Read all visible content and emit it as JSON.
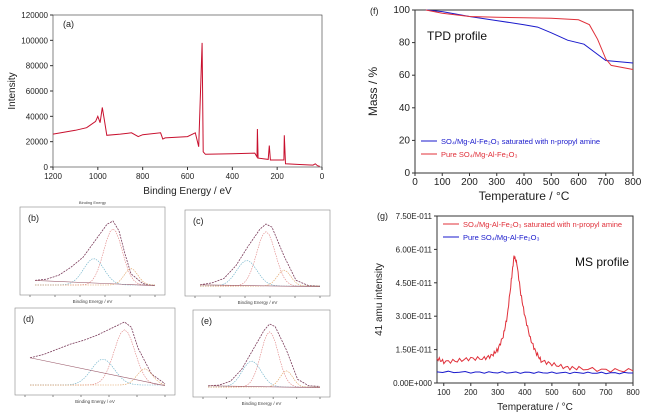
{
  "chart_data": [
    {
      "panel": "(a)",
      "type": "line",
      "xlabel": "Binding Energy / eV",
      "ylabel": "Intensity",
      "xlim": [
        1200,
        0
      ],
      "ylim": [
        0,
        120000
      ],
      "xticks": [
        "1200",
        "1000",
        "800",
        "600",
        "400",
        "200",
        "0"
      ],
      "yticks": [
        "0",
        "20000",
        "40000",
        "60000",
        "80000",
        "100000",
        "120000"
      ],
      "grid": false,
      "colors": [
        "#c8102e"
      ],
      "series": [
        {
          "x": [
            1200,
            1100,
            1050,
            1010,
            1000,
            990,
            980,
            970,
            960,
            900,
            850,
            820,
            800,
            720,
            710,
            700,
            600,
            565,
            550,
            535,
            530,
            520,
            400,
            300,
            290,
            288,
            285,
            240,
            235,
            230,
            170,
            168,
            163,
            100,
            40,
            30,
            20,
            10
          ],
          "y": [
            26000,
            29000,
            31000,
            36000,
            40000,
            35000,
            47000,
            36000,
            25000,
            26000,
            27000,
            24000,
            25500,
            27000,
            22000,
            23000,
            24000,
            27000,
            16000,
            98000,
            12000,
            10000,
            10500,
            11000,
            8000,
            30000,
            7000,
            6000,
            17000,
            5500,
            5500,
            25000,
            2500,
            2000,
            1500,
            2500,
            1000,
            500
          ]
        }
      ]
    },
    {
      "panel": "(f)",
      "type": "line",
      "xlabel": "Temperature / °C",
      "ylabel": "Mass / %",
      "annotation": "TPD profile",
      "xlim": [
        0,
        800
      ],
      "ylim": [
        0,
        100
      ],
      "xticks": [
        "0",
        "100",
        "200",
        "300",
        "400",
        "500",
        "600",
        "700",
        "800"
      ],
      "yticks": [
        "0",
        "20",
        "40",
        "60",
        "80",
        "100"
      ],
      "grid": false,
      "legend": "bottom-left",
      "series": [
        {
          "name": "SO4/Mg-Al-Fe2O3 saturated with n-propyl amine",
          "color": "#1a1acc",
          "x": [
            40,
            100,
            200,
            300,
            400,
            450,
            500,
            560,
            620,
            660,
            700,
            800
          ],
          "y": [
            100,
            99,
            96,
            93.5,
            91,
            89.5,
            86,
            81.5,
            79,
            74,
            69,
            67.5
          ]
        },
        {
          "name": "Pure SO4/Mg-Al-Fe2O3",
          "color": "#e0303a",
          "x": [
            40,
            100,
            200,
            300,
            400,
            500,
            600,
            640,
            670,
            700,
            720,
            800
          ],
          "y": [
            100,
            98,
            96,
            95.5,
            95.3,
            95,
            94,
            91,
            82,
            70,
            66,
            63.5
          ]
        }
      ]
    },
    {
      "panel": "(g)",
      "type": "line",
      "xlabel": "Temperature / °C",
      "ylabel": "41 amu intensity",
      "annotation": "MS profile",
      "xlim": [
        75,
        800
      ],
      "ylim": [
        0,
        7.5e-11
      ],
      "xticks": [
        "100",
        "200",
        "300",
        "400",
        "500",
        "600",
        "700",
        "800"
      ],
      "yticks": [
        "0.00E+000",
        "1.50E-011",
        "3.00E-011",
        "4.50E-011",
        "6.00E-011",
        "7.50E-011"
      ],
      "grid": false,
      "legend": "top-left",
      "series": [
        {
          "name": "SO4/Mg-Al-Fe2O3 saturated with n-propyl amine",
          "color": "#e0303a",
          "x": [
            75,
            100,
            150,
            200,
            250,
            280,
            300,
            320,
            335,
            350,
            360,
            370,
            385,
            400,
            420,
            440,
            460,
            500,
            550,
            600,
            700,
            800
          ],
          "y": [
            1.1e-11,
            9.5e-12,
            1e-11,
            1.1e-11,
            1.1e-11,
            1.25e-11,
            1.5e-11,
            2.1e-11,
            3e-11,
            4.6e-11,
            5.7e-11,
            5.4e-11,
            4e-11,
            3e-11,
            2e-11,
            1.4e-11,
            1e-11,
            8.5e-12,
            7e-12,
            6.5e-12,
            5.8e-12,
            5.5e-12
          ]
        },
        {
          "name": "Pure SO4/Mg-Al-Fe2O3",
          "color": "#1a1acc",
          "x": [
            75,
            200,
            300,
            400,
            500,
            600,
            700,
            800
          ],
          "y": [
            5e-12,
            4.8e-12,
            4.7e-12,
            4.7e-12,
            4.6e-12,
            4.6e-12,
            4.5e-12,
            4.5e-12
          ]
        }
      ]
    },
    {
      "panel": "(b)",
      "type": "line",
      "title": "Binding Energy",
      "xlabel": "Binding Energy / eV",
      "series": [
        {
          "x": [
            0,
            1,
            2,
            3,
            4,
            5,
            6,
            6.5,
            7,
            7.5,
            8,
            9,
            10
          ],
          "y": [
            0.1,
            0.12,
            0.18,
            0.3,
            0.45,
            0.7,
            0.95,
            1,
            0.85,
            0.5,
            0.2,
            0.05,
            0.02
          ]
        }
      ]
    },
    {
      "panel": "(c)",
      "type": "line",
      "xlabel": "Binding Energy / eV",
      "series": [
        {
          "x": [
            0,
            1,
            2,
            3,
            4,
            5,
            5.5,
            6,
            7,
            8,
            9,
            10
          ],
          "y": [
            0.05,
            0.08,
            0.15,
            0.35,
            0.65,
            0.92,
            1,
            0.95,
            0.5,
            0.12,
            0.04,
            0.03
          ]
        }
      ]
    },
    {
      "panel": "(d)",
      "type": "line",
      "xlabel": "Binding Energy / eV",
      "series": [
        {
          "x": [
            0,
            1,
            2,
            3,
            4,
            5,
            6,
            7,
            7.5,
            8,
            9,
            10
          ],
          "y": [
            0.45,
            0.5,
            0.58,
            0.66,
            0.72,
            0.8,
            0.9,
            1,
            0.92,
            0.6,
            0.2,
            0.05
          ]
        }
      ]
    },
    {
      "panel": "(e)",
      "type": "line",
      "xlabel": "Binding Energy / eV",
      "series": [
        {
          "x": [
            0,
            1,
            2,
            3,
            4,
            5,
            5.5,
            6,
            7,
            8,
            9,
            10
          ],
          "y": [
            0.05,
            0.06,
            0.12,
            0.3,
            0.6,
            0.9,
            1,
            0.96,
            0.6,
            0.15,
            0.05,
            0.04
          ]
        }
      ]
    }
  ]
}
